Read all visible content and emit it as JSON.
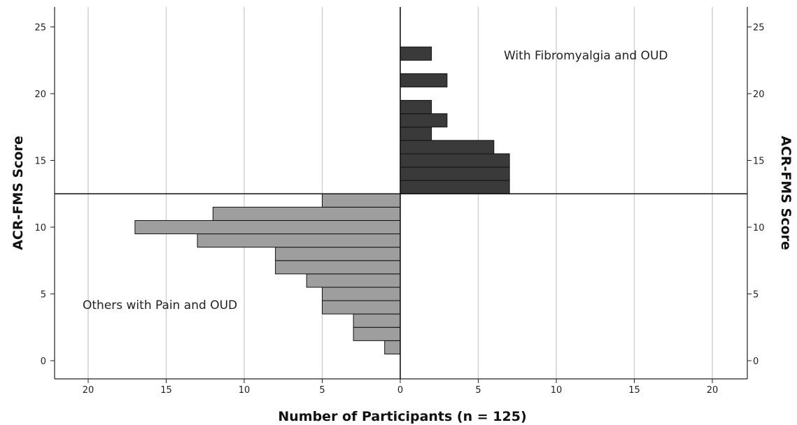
{
  "chart_data": {
    "type": "bar",
    "orientation": "horizontal",
    "layout": "back-to-back",
    "xlabel": "Number of Participants (n = 125)",
    "ylabel_left": "ACR-FMS Score",
    "ylabel_right": "ACR-FMS Score",
    "x_ticks": [
      "20",
      "15",
      "10",
      "5",
      "0",
      "5",
      "10",
      "15",
      "20"
    ],
    "y_ticks": [
      "0",
      "5",
      "10",
      "15",
      "20",
      "25"
    ],
    "xlim": [
      -22,
      22
    ],
    "ylim": [
      -1.3,
      26.3
    ],
    "divider_score": 12.5,
    "grid": "vertical",
    "series": [
      {
        "name": "Others with Pain and OUD",
        "side": "left",
        "color": "#9e9e9e",
        "scores": [
          1,
          2,
          3,
          4,
          5,
          6,
          7,
          8,
          9,
          10,
          11,
          12
        ],
        "values": [
          1,
          3,
          3,
          5,
          5,
          6,
          8,
          8,
          13,
          17,
          12,
          5
        ]
      },
      {
        "name": "With Fibromyalgia and OUD",
        "side": "right",
        "color": "#3a3a3a",
        "scores": [
          13,
          14,
          15,
          16,
          17,
          18,
          19,
          21,
          23
        ],
        "values": [
          7,
          7,
          7,
          6,
          2,
          3,
          2,
          3,
          2
        ]
      }
    ]
  }
}
